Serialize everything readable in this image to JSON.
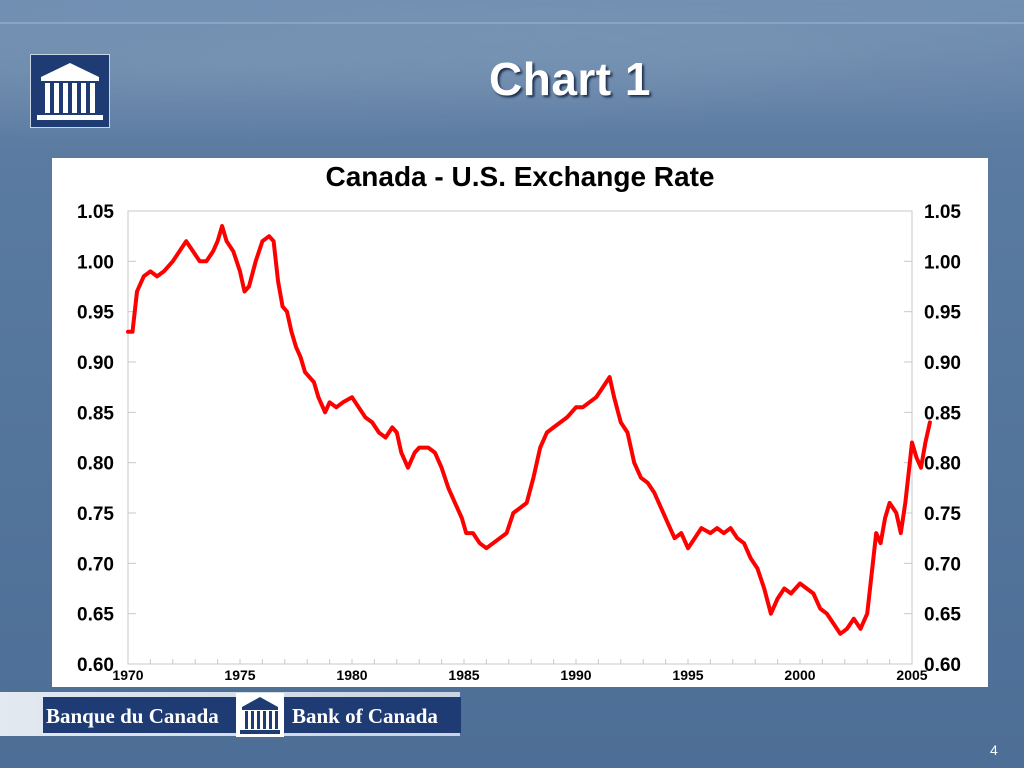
{
  "slide": {
    "title": "Chart 1",
    "page_number": "4",
    "footer": {
      "french": "Banque du Canada",
      "english": "Bank of Canada"
    }
  },
  "colors": {
    "line": "#ff0000",
    "brand_navy": "#1f3b73",
    "background": "#56779e"
  },
  "icons": {
    "logo": "bank-building-icon"
  },
  "chart_data": {
    "type": "line",
    "title": "Canada - U.S. Exchange Rate",
    "xlabel": "",
    "ylabel": "",
    "xlim": [
      1970,
      2005
    ],
    "ylim": [
      0.6,
      1.05
    ],
    "x_ticks": [
      "1970",
      "1975",
      "1980",
      "1985",
      "1990",
      "1995",
      "2000",
      "2005"
    ],
    "y_ticks": [
      "1.05",
      "1.00",
      "0.95",
      "0.90",
      "0.85",
      "0.80",
      "0.75",
      "0.70",
      "0.65",
      "0.60"
    ],
    "grid": false,
    "legend": "none",
    "series": [
      {
        "values": [
          [
            1970.0,
            0.93
          ],
          [
            1970.2,
            0.93
          ],
          [
            1970.4,
            0.97
          ],
          [
            1970.7,
            0.985
          ],
          [
            1971.0,
            0.99
          ],
          [
            1971.3,
            0.985
          ],
          [
            1971.6,
            0.99
          ],
          [
            1972.0,
            1.0
          ],
          [
            1972.3,
            1.01
          ],
          [
            1972.6,
            1.02
          ],
          [
            1972.9,
            1.01
          ],
          [
            1973.2,
            1.0
          ],
          [
            1973.5,
            1.0
          ],
          [
            1973.8,
            1.01
          ],
          [
            1974.0,
            1.02
          ],
          [
            1974.2,
            1.035
          ],
          [
            1974.4,
            1.02
          ],
          [
            1974.7,
            1.01
          ],
          [
            1975.0,
            0.99
          ],
          [
            1975.2,
            0.97
          ],
          [
            1975.4,
            0.975
          ],
          [
            1975.7,
            1.0
          ],
          [
            1976.0,
            1.02
          ],
          [
            1976.3,
            1.025
          ],
          [
            1976.5,
            1.02
          ],
          [
            1976.7,
            0.98
          ],
          [
            1976.9,
            0.955
          ],
          [
            1977.1,
            0.95
          ],
          [
            1977.3,
            0.93
          ],
          [
            1977.5,
            0.915
          ],
          [
            1977.7,
            0.905
          ],
          [
            1977.9,
            0.89
          ],
          [
            1978.1,
            0.885
          ],
          [
            1978.3,
            0.88
          ],
          [
            1978.5,
            0.865
          ],
          [
            1978.8,
            0.85
          ],
          [
            1979.0,
            0.86
          ],
          [
            1979.3,
            0.855
          ],
          [
            1979.6,
            0.86
          ],
          [
            1980.0,
            0.865
          ],
          [
            1980.3,
            0.855
          ],
          [
            1980.6,
            0.845
          ],
          [
            1980.9,
            0.84
          ],
          [
            1981.2,
            0.83
          ],
          [
            1981.5,
            0.825
          ],
          [
            1981.8,
            0.835
          ],
          [
            1982.0,
            0.83
          ],
          [
            1982.2,
            0.81
          ],
          [
            1982.5,
            0.795
          ],
          [
            1982.8,
            0.81
          ],
          [
            1983.0,
            0.815
          ],
          [
            1983.4,
            0.815
          ],
          [
            1983.7,
            0.81
          ],
          [
            1984.0,
            0.795
          ],
          [
            1984.3,
            0.775
          ],
          [
            1984.6,
            0.76
          ],
          [
            1984.9,
            0.745
          ],
          [
            1985.1,
            0.73
          ],
          [
            1985.4,
            0.73
          ],
          [
            1985.7,
            0.72
          ],
          [
            1986.0,
            0.715
          ],
          [
            1986.3,
            0.72
          ],
          [
            1986.6,
            0.725
          ],
          [
            1986.9,
            0.73
          ],
          [
            1987.2,
            0.75
          ],
          [
            1987.5,
            0.755
          ],
          [
            1987.8,
            0.76
          ],
          [
            1988.1,
            0.785
          ],
          [
            1988.4,
            0.815
          ],
          [
            1988.7,
            0.83
          ],
          [
            1989.0,
            0.835
          ],
          [
            1989.3,
            0.84
          ],
          [
            1989.6,
            0.845
          ],
          [
            1990.0,
            0.855
          ],
          [
            1990.3,
            0.855
          ],
          [
            1990.6,
            0.86
          ],
          [
            1990.9,
            0.865
          ],
          [
            1991.2,
            0.875
          ],
          [
            1991.5,
            0.885
          ],
          [
            1991.7,
            0.865
          ],
          [
            1992.0,
            0.84
          ],
          [
            1992.3,
            0.83
          ],
          [
            1992.6,
            0.8
          ],
          [
            1992.9,
            0.785
          ],
          [
            1993.2,
            0.78
          ],
          [
            1993.5,
            0.77
          ],
          [
            1993.8,
            0.755
          ],
          [
            1994.1,
            0.74
          ],
          [
            1994.4,
            0.725
          ],
          [
            1994.7,
            0.73
          ],
          [
            1995.0,
            0.715
          ],
          [
            1995.3,
            0.725
          ],
          [
            1995.6,
            0.735
          ],
          [
            1996.0,
            0.73
          ],
          [
            1996.3,
            0.735
          ],
          [
            1996.6,
            0.73
          ],
          [
            1996.9,
            0.735
          ],
          [
            1997.2,
            0.725
          ],
          [
            1997.5,
            0.72
          ],
          [
            1997.8,
            0.705
          ],
          [
            1998.1,
            0.695
          ],
          [
            1998.4,
            0.675
          ],
          [
            1998.7,
            0.65
          ],
          [
            1999.0,
            0.665
          ],
          [
            1999.3,
            0.675
          ],
          [
            1999.6,
            0.67
          ],
          [
            2000.0,
            0.68
          ],
          [
            2000.3,
            0.675
          ],
          [
            2000.6,
            0.67
          ],
          [
            2000.9,
            0.655
          ],
          [
            2001.2,
            0.65
          ],
          [
            2001.5,
            0.64
          ],
          [
            2001.8,
            0.63
          ],
          [
            2002.1,
            0.635
          ],
          [
            2002.4,
            0.645
          ],
          [
            2002.7,
            0.635
          ],
          [
            2003.0,
            0.65
          ],
          [
            2003.2,
            0.69
          ],
          [
            2003.4,
            0.73
          ],
          [
            2003.6,
            0.72
          ],
          [
            2003.8,
            0.745
          ],
          [
            2004.0,
            0.76
          ],
          [
            2004.3,
            0.75
          ],
          [
            2004.5,
            0.73
          ],
          [
            2004.7,
            0.76
          ],
          [
            2004.9,
            0.8
          ],
          [
            2005.0,
            0.82
          ],
          [
            2005.2,
            0.805
          ],
          [
            2005.4,
            0.795
          ],
          [
            2005.6,
            0.82
          ],
          [
            2005.8,
            0.84
          ]
        ]
      }
    ]
  }
}
